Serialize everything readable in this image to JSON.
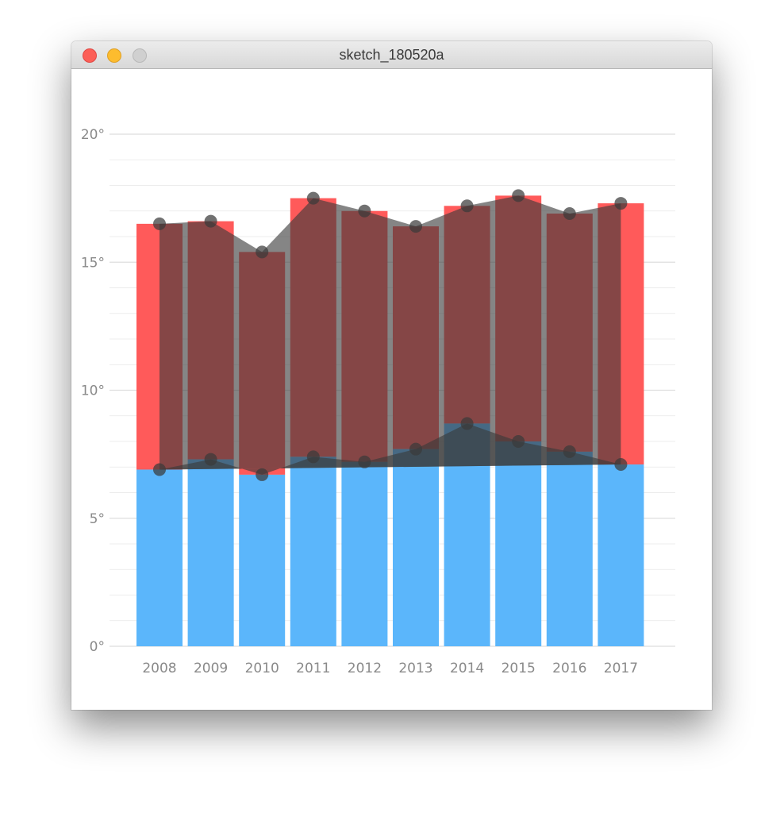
{
  "window": {
    "title": "sketch_180520a",
    "controls": [
      "close",
      "minimize",
      "zoom"
    ]
  },
  "colors": {
    "upper_bar": "#ff5a5a",
    "lower_bar": "#5bb6fb",
    "area": "#3a3a3a",
    "points": "#3a3a3a",
    "grid": "#e6e6e6",
    "tick_text": "#8a8a8a"
  },
  "chart_data": {
    "type": "bar",
    "categories": [
      "2008",
      "2009",
      "2010",
      "2011",
      "2012",
      "2013",
      "2014",
      "2015",
      "2016",
      "2017"
    ],
    "series": [
      {
        "values": [
          16.5,
          16.6,
          15.4,
          17.5,
          17.0,
          16.4,
          17.2,
          17.6,
          16.9,
          17.3
        ]
      },
      {
        "values": [
          6.9,
          7.3,
          6.7,
          7.4,
          7.2,
          7.7,
          8.7,
          8.0,
          7.6,
          7.1
        ]
      }
    ],
    "y_ticks": [
      "0°",
      "5°",
      "10°",
      "15°",
      "20°"
    ],
    "ylim": [
      0,
      20
    ],
    "grid": true,
    "overlay": "first and last values of the lower series are joined by a line; filled regions lie between that line and the point-to-point line of each series",
    "title": "",
    "xlabel": "",
    "ylabel": ""
  }
}
